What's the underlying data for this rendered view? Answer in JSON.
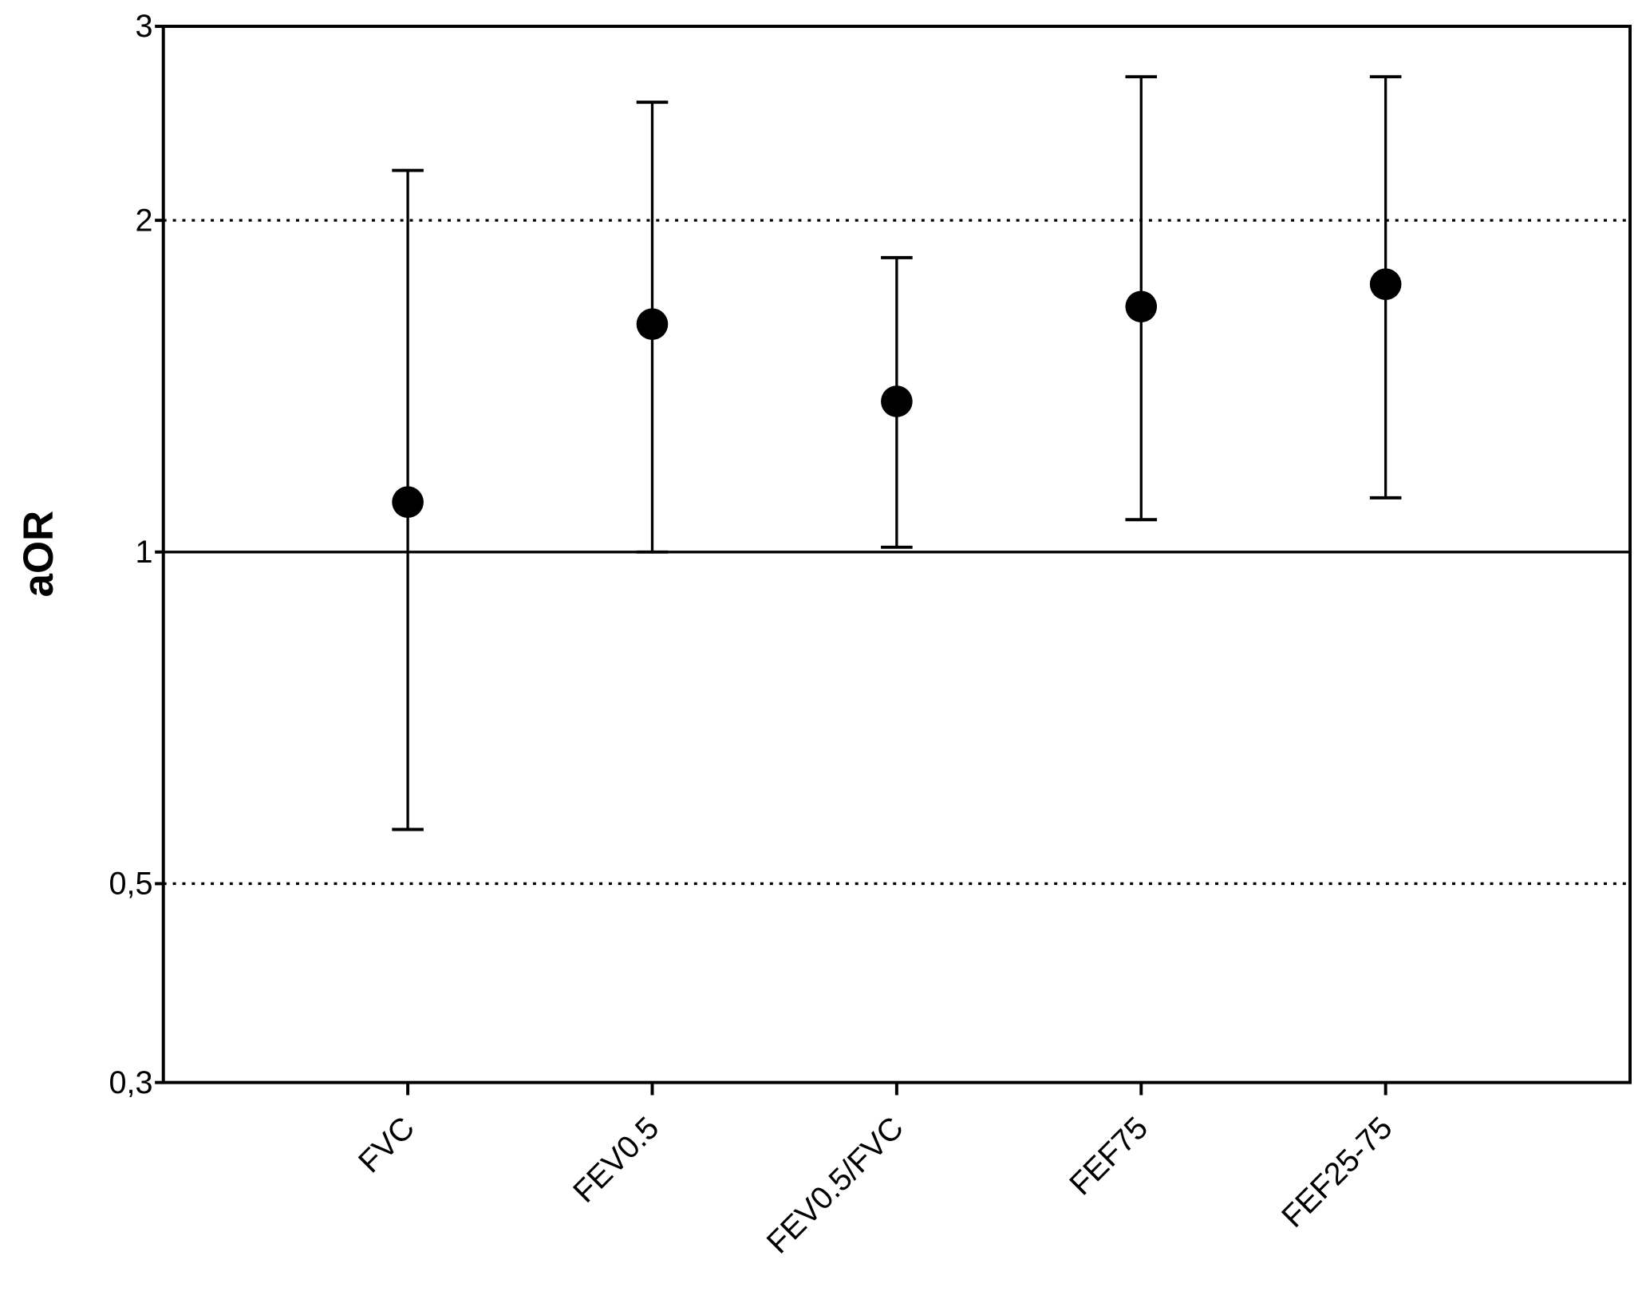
{
  "chart_data": {
    "type": "errorbar",
    "y_label": "aOR",
    "categories": [
      "FVC",
      "FEV0.5",
      "FEV0.5/FVC",
      "FEF75",
      "FEF25-75"
    ],
    "values": [
      1.11,
      1.61,
      1.37,
      1.67,
      1.75
    ],
    "ci_lower": [
      0.56,
      1.0,
      1.01,
      1.07,
      1.12
    ],
    "ci_upper": [
      2.22,
      2.56,
      1.85,
      2.7,
      2.7
    ],
    "color": "#000000",
    "y_scale": "log",
    "ylim": [
      0.33,
      3
    ],
    "yticks": [
      {
        "value": 0.33,
        "label": "0,3"
      },
      {
        "value": 0.5,
        "label": "0,5"
      },
      1,
      2,
      3
    ],
    "reference_lines": [
      {
        "value": 2,
        "style": "dotted"
      },
      {
        "value": 1,
        "style": "solid"
      },
      {
        "value": 0.5,
        "style": "dotted"
      }
    ]
  }
}
